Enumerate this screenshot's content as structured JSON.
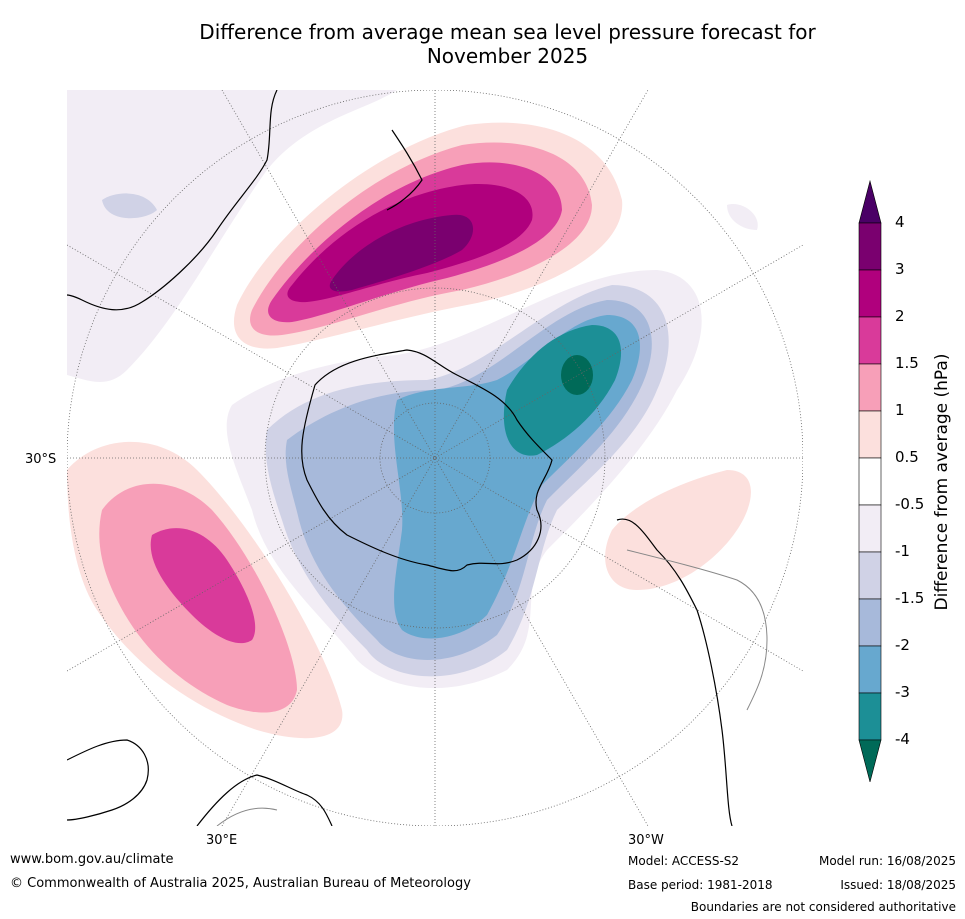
{
  "title_line1": "Difference from average mean sea level pressure forecast for",
  "title_line2": "November 2025",
  "map_labels": {
    "lat_30s": "30°S",
    "lon_30e": "30°E",
    "lon_30w": "30°W"
  },
  "colorbar": {
    "title": "Difference from average (hPa)",
    "ticks": [
      "4",
      "3",
      "2",
      "1.5",
      "1",
      "0.5",
      "-0.5",
      "-1",
      "-1.5",
      "-2",
      "-3",
      "-4"
    ],
    "colors": {
      "above_4": "#4a0066",
      "3_to_4": "#7a006f",
      "2_to_3": "#b0007d",
      "1.5_to_2": "#d93a9a",
      "1_to_1.5": "#f79fb8",
      "0.5_to_1": "#fce0dd",
      "neutral": "#ffffff",
      "m1_to_m0.5": "#f2edf5",
      "m1.5_to_m1": "#d0d2e6",
      "m2_to_m1.5": "#a7b9da",
      "m3_to_m2": "#67a8cf",
      "m4_to_m3": "#1c8f96",
      "below_m4": "#006a58"
    }
  },
  "footer": {
    "website": "www.bom.gov.au/climate",
    "copyright": "© Commonwealth of Australia 2025, Australian Bureau of Meteorology",
    "model": "Model: ACCESS-S2",
    "base_period": "Base period: 1981-2018",
    "model_run": "Model run: 16/08/2025",
    "issued": "Issued: 18/08/2025",
    "disclaimer": "Boundaries are not considered authoritative"
  }
}
